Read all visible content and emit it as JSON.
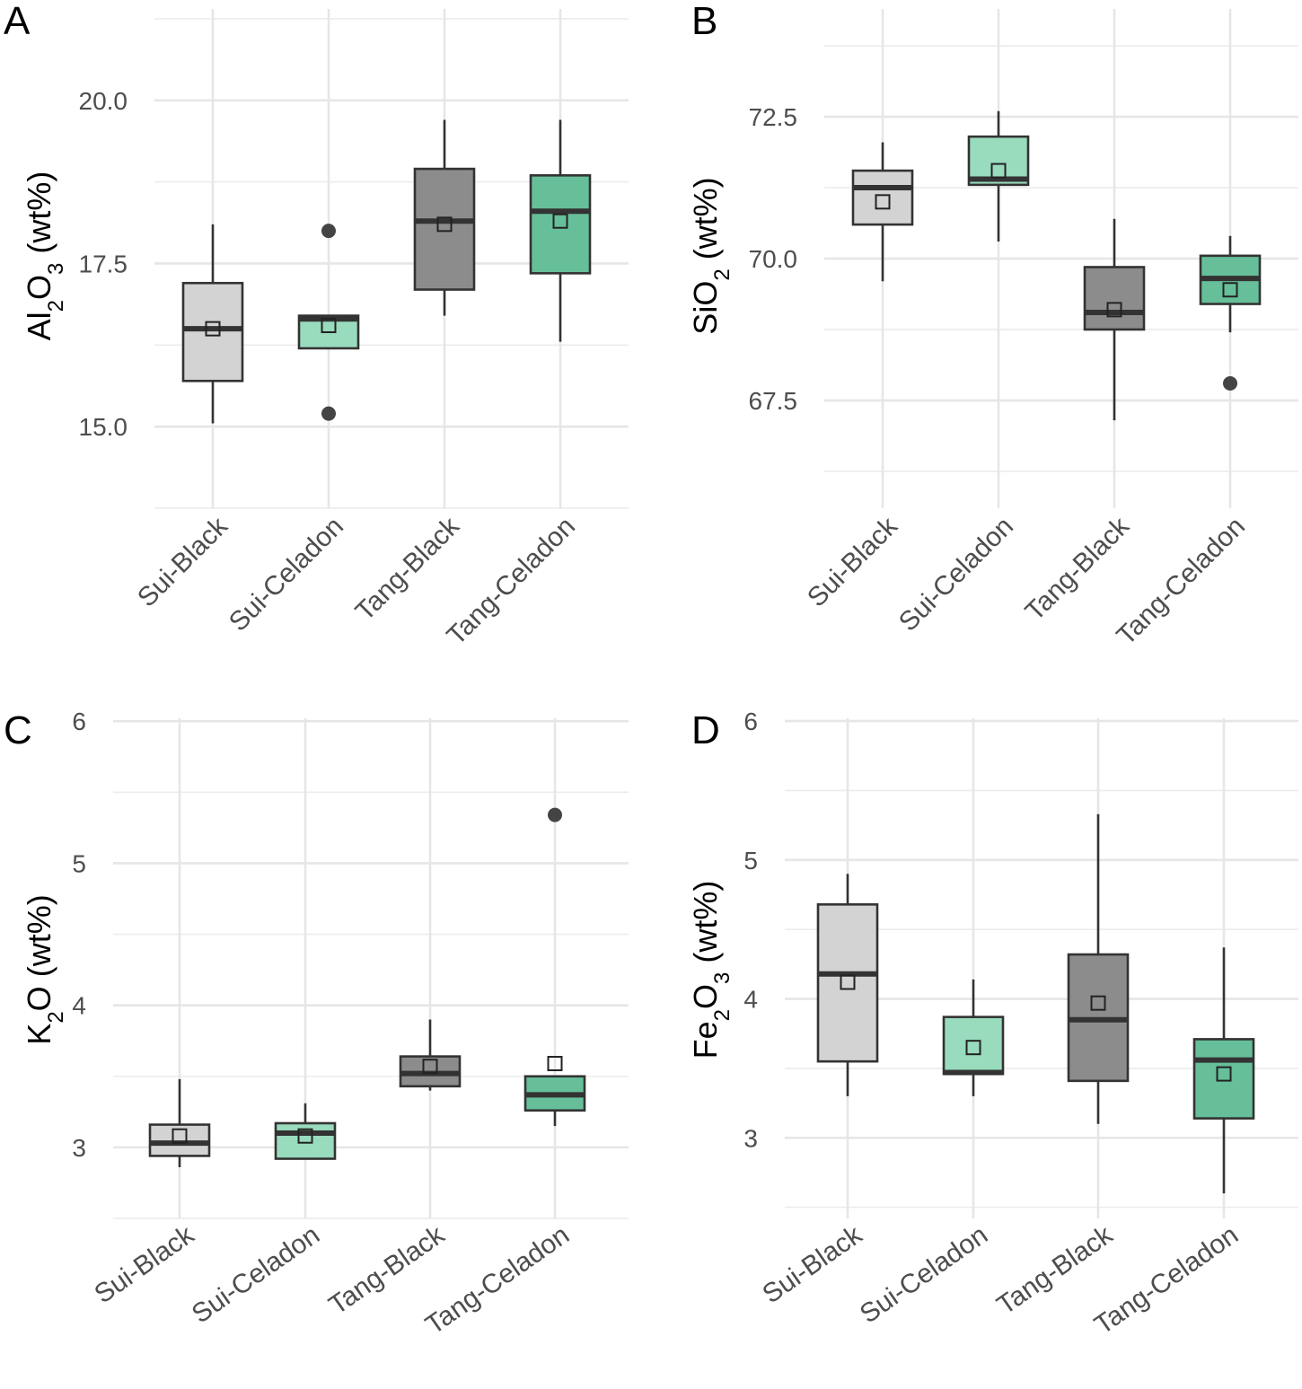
{
  "chart_data": [
    {
      "panel": "A",
      "type": "box",
      "ylabel": "Al2O3 (wt%)",
      "ylabel_parts": {
        "a": "Al",
        "sub1": "2",
        "b": "O",
        "sub2": "3",
        "c": " (wt%)"
      },
      "ylim": [
        13.75,
        21.4
      ],
      "yticks": [
        15.0,
        17.5,
        20.0
      ],
      "ytick_labels": [
        "15.0",
        "17.5",
        "20.0"
      ],
      "categories": [
        "Sui-Black",
        "Sui-Celadon",
        "Tang-Black",
        "Tang-Celadon"
      ],
      "boxes": [
        {
          "group": "Sui-Black",
          "whisker_low": 15.05,
          "q1": 15.7,
          "median": 16.5,
          "q3": 17.2,
          "whisker_high": 18.1,
          "mean": 16.5,
          "outliers": []
        },
        {
          "group": "Sui-Celadon",
          "whisker_low": 16.2,
          "q1": 16.2,
          "median": 16.65,
          "q3": 16.7,
          "whisker_high": 16.7,
          "mean": 16.55,
          "outliers": [
            18.0,
            15.2
          ]
        },
        {
          "group": "Tang-Black",
          "whisker_low": 16.7,
          "q1": 17.1,
          "median": 18.15,
          "q3": 18.95,
          "whisker_high": 19.7,
          "mean": 18.1,
          "outliers": []
        },
        {
          "group": "Tang-Celadon",
          "whisker_low": 16.3,
          "q1": 17.35,
          "median": 18.3,
          "q3": 18.85,
          "whisker_high": 19.7,
          "mean": 18.15,
          "outliers": []
        }
      ]
    },
    {
      "panel": "B",
      "type": "box",
      "ylabel": "SiO2 (wt%)",
      "ylabel_parts": {
        "a": "SiO",
        "sub1": "2",
        "b": "",
        "sub2": "",
        "c": " (wt%)"
      },
      "ylim": [
        65.6,
        74.4
      ],
      "yticks": [
        67.5,
        70.0,
        72.5
      ],
      "ytick_labels": [
        "67.5",
        "70.0",
        "72.5"
      ],
      "categories": [
        "Sui-Black",
        "Sui-Celadon",
        "Tang-Black",
        "Tang-Celadon"
      ],
      "boxes": [
        {
          "group": "Sui-Black",
          "whisker_low": 69.6,
          "q1": 70.6,
          "median": 71.25,
          "q3": 71.55,
          "whisker_high": 72.05,
          "mean": 71.0,
          "outliers": []
        },
        {
          "group": "Sui-Celadon",
          "whisker_low": 70.3,
          "q1": 71.3,
          "median": 71.4,
          "q3": 72.15,
          "whisker_high": 72.6,
          "mean": 71.55,
          "outliers": []
        },
        {
          "group": "Tang-Black",
          "whisker_low": 67.15,
          "q1": 68.75,
          "median": 69.05,
          "q3": 69.85,
          "whisker_high": 70.7,
          "mean": 69.1,
          "outliers": []
        },
        {
          "group": "Tang-Celadon",
          "whisker_low": 68.7,
          "q1": 69.2,
          "median": 69.65,
          "q3": 70.05,
          "whisker_high": 70.4,
          "mean": 69.45,
          "outliers": [
            67.8
          ]
        }
      ]
    },
    {
      "panel": "C",
      "type": "box",
      "ylabel": "K2O (wt%)",
      "ylabel_parts": {
        "a": "K",
        "sub1": "2",
        "b": "O",
        "sub2": "",
        "c": " (wt%)"
      },
      "ylim": [
        2.5,
        6.02
      ],
      "yticks": [
        3,
        4,
        5,
        6
      ],
      "ytick_labels": [
        "3",
        "4",
        "5",
        "6"
      ],
      "categories": [
        "Sui-Black",
        "Sui-Celadon",
        "Tang-Black",
        "Tang-Celadon"
      ],
      "boxes": [
        {
          "group": "Sui-Black",
          "whisker_low": 2.86,
          "q1": 2.94,
          "median": 3.03,
          "q3": 3.16,
          "whisker_high": 3.48,
          "mean": 3.08,
          "outliers": []
        },
        {
          "group": "Sui-Celadon",
          "whisker_low": 2.92,
          "q1": 2.92,
          "median": 3.1,
          "q3": 3.17,
          "whisker_high": 3.31,
          "mean": 3.08,
          "outliers": []
        },
        {
          "group": "Tang-Black",
          "whisker_low": 3.4,
          "q1": 3.43,
          "median": 3.52,
          "q3": 3.64,
          "whisker_high": 3.9,
          "mean": 3.57,
          "outliers": []
        },
        {
          "group": "Tang-Celadon",
          "whisker_low": 3.15,
          "q1": 3.26,
          "median": 3.37,
          "q3": 3.5,
          "whisker_high": 3.5,
          "mean": 3.59,
          "outliers": [
            5.34
          ]
        }
      ]
    },
    {
      "panel": "D",
      "type": "box",
      "ylabel": "Fe2O3 (wt%)",
      "ylabel_parts": {
        "a": "Fe",
        "sub1": "2",
        "b": "O",
        "sub2": "3",
        "c": " (wt%)"
      },
      "ylim": [
        2.42,
        6.02
      ],
      "yticks": [
        3,
        4,
        5,
        6
      ],
      "ytick_labels": [
        "3",
        "4",
        "5",
        "6"
      ],
      "categories": [
        "Sui-Black",
        "Sui-Celadon",
        "Tang-Black",
        "Tang-Celadon"
      ],
      "boxes": [
        {
          "group": "Sui-Black",
          "whisker_low": 3.3,
          "q1": 3.55,
          "median": 4.18,
          "q3": 4.68,
          "whisker_high": 4.9,
          "mean": 4.12,
          "outliers": []
        },
        {
          "group": "Sui-Celadon",
          "whisker_low": 3.3,
          "q1": 3.46,
          "median": 3.47,
          "q3": 3.87,
          "whisker_high": 4.14,
          "mean": 3.65,
          "outliers": []
        },
        {
          "group": "Tang-Black",
          "whisker_low": 3.1,
          "q1": 3.41,
          "median": 3.85,
          "q3": 4.32,
          "whisker_high": 5.33,
          "mean": 3.97,
          "outliers": []
        },
        {
          "group": "Tang-Celadon",
          "whisker_low": 2.6,
          "q1": 3.14,
          "median": 3.56,
          "q3": 3.71,
          "whisker_high": 4.37,
          "mean": 3.46,
          "outliers": []
        }
      ]
    }
  ],
  "group_colors": {
    "Sui-Black": "#d3d3d3",
    "Sui-Celadon": "#99dbbd",
    "Tang-Black": "#8c8c8c",
    "Tang-Celadon": "#66bf99"
  },
  "mark_colors": {
    "box_stroke": "#333333",
    "outlier": "#444444",
    "mean_marker_fill": "none",
    "mean_marker_stroke": "#222222"
  }
}
